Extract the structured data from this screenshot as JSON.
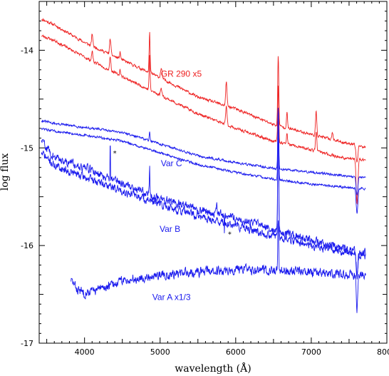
{
  "chart_data": {
    "type": "line",
    "xlabel": "wavelength (Å)",
    "ylabel": "log flux",
    "xlim": [
      3400,
      8000
    ],
    "ylim": [
      -17,
      -13.5
    ],
    "x_ticks": [
      4000,
      5000,
      6000,
      7000,
      8000
    ],
    "x_tick_labels": [
      "4000",
      "5000",
      "6000",
      "7000",
      "8000"
    ],
    "y_ticks": [
      -14,
      -15,
      -16,
      -17
    ],
    "y_tick_labels": [
      "-14",
      "-15",
      "-16",
      "-17"
    ],
    "grid": false,
    "colors": {
      "red": "#ee2222",
      "blue": "#1a1aee"
    },
    "annotations": [
      {
        "text": "GR 290 x5",
        "x": 5280,
        "y": -14.24,
        "color": "#ee2222"
      },
      {
        "text": "Var C",
        "x": 5150,
        "y": -15.16,
        "color": "#1a1aee"
      },
      {
        "text": "Var B",
        "x": 5130,
        "y": -15.83,
        "color": "#1a1aee"
      },
      {
        "text": "Var A  x1/3",
        "x": 5150,
        "y": -16.53,
        "color": "#1a1aee"
      },
      {
        "text": "*",
        "x": 4400,
        "y": -15.05,
        "color": "#000000"
      },
      {
        "text": "*",
        "x": 5920,
        "y": -15.88,
        "color": "#000000"
      }
    ],
    "series": [
      {
        "color": "#ee2222",
        "noise": 0.012,
        "seed": 11,
        "points": [
          [
            3430,
            -13.68
          ],
          [
            3600,
            -13.74
          ],
          [
            4000,
            -13.92
          ],
          [
            4500,
            -14.1
          ],
          [
            5000,
            -14.28
          ],
          [
            5500,
            -14.48
          ],
          [
            6000,
            -14.6
          ],
          [
            6500,
            -14.76
          ],
          [
            7000,
            -14.86
          ],
          [
            7400,
            -14.94
          ],
          [
            7620,
            -14.97
          ],
          [
            7720,
            -15.0
          ]
        ],
        "lines": [
          [
            4102,
            0.12,
            12
          ],
          [
            4340,
            0.16,
            12
          ],
          [
            4471,
            0.07,
            10
          ],
          [
            4861,
            0.42,
            9
          ],
          [
            5015,
            0.1,
            14
          ],
          [
            5876,
            0.25,
            12
          ],
          [
            6563,
            0.72,
            10
          ],
          [
            6678,
            0.16,
            10
          ],
          [
            7065,
            0.24,
            12
          ],
          [
            7280,
            0.08,
            12
          ]
        ],
        "abs": [
          [
            7605,
            0.18,
            18
          ]
        ]
      },
      {
        "color": "#ee2222",
        "noise": 0.012,
        "seed": 23,
        "points": [
          [
            3430,
            -13.85
          ],
          [
            3600,
            -13.9
          ],
          [
            4000,
            -14.07
          ],
          [
            4500,
            -14.27
          ],
          [
            5000,
            -14.46
          ],
          [
            5500,
            -14.65
          ],
          [
            6000,
            -14.8
          ],
          [
            6500,
            -14.93
          ],
          [
            7000,
            -15.02
          ],
          [
            7400,
            -15.1
          ],
          [
            7620,
            -15.12
          ],
          [
            7720,
            -15.12
          ]
        ],
        "lines": [
          [
            4102,
            0.1,
            12
          ],
          [
            4340,
            0.14,
            12
          ],
          [
            4471,
            0.06,
            10
          ],
          [
            4861,
            0.36,
            9
          ],
          [
            5015,
            0.08,
            14
          ],
          [
            5876,
            0.2,
            12
          ],
          [
            6563,
            0.58,
            10
          ],
          [
            6678,
            0.12,
            10
          ],
          [
            7065,
            0.2,
            12
          ]
        ],
        "abs": [
          [
            7605,
            0.45,
            16
          ]
        ]
      },
      {
        "color": "#1a1aee",
        "noise": 0.01,
        "seed": 31,
        "points": [
          [
            3430,
            -14.72
          ],
          [
            3600,
            -14.75
          ],
          [
            4000,
            -14.79
          ],
          [
            4500,
            -14.84
          ],
          [
            5000,
            -14.96
          ],
          [
            5500,
            -15.08
          ],
          [
            6000,
            -15.15
          ],
          [
            6500,
            -15.21
          ],
          [
            7000,
            -15.25
          ],
          [
            7400,
            -15.28
          ],
          [
            7620,
            -15.3
          ],
          [
            7720,
            -15.3
          ]
        ],
        "lines": [
          [
            4861,
            0.1,
            8
          ],
          [
            6563,
            0.62,
            9
          ]
        ],
        "abs": [
          [
            7605,
            0.18,
            16
          ]
        ]
      },
      {
        "color": "#1a1aee",
        "noise": 0.01,
        "seed": 47,
        "points": [
          [
            3430,
            -14.8
          ],
          [
            3600,
            -14.83
          ],
          [
            4000,
            -14.87
          ],
          [
            4500,
            -14.93
          ],
          [
            5000,
            -15.05
          ],
          [
            5500,
            -15.17
          ],
          [
            6000,
            -15.25
          ],
          [
            6500,
            -15.32
          ],
          [
            7000,
            -15.37
          ],
          [
            7400,
            -15.4
          ],
          [
            7620,
            -15.41
          ],
          [
            7720,
            -15.42
          ]
        ],
        "lines": [
          [
            6563,
            0.72,
            9
          ]
        ],
        "abs": [
          [
            7605,
            0.26,
            16
          ]
        ]
      },
      {
        "color": "#1a1aee",
        "noise": 0.035,
        "seed": 59,
        "points": [
          [
            3430,
            -14.92
          ],
          [
            3600,
            -15.1
          ],
          [
            4000,
            -15.2
          ],
          [
            4500,
            -15.36
          ],
          [
            5000,
            -15.52
          ],
          [
            5500,
            -15.62
          ],
          [
            6000,
            -15.72
          ],
          [
            6500,
            -15.83
          ],
          [
            7000,
            -15.95
          ],
          [
            7400,
            -16.02
          ],
          [
            7620,
            -16.05
          ],
          [
            7720,
            -16.08
          ]
        ],
        "lines": [
          [
            4340,
            0.55,
            3
          ],
          [
            4861,
            0.3,
            6
          ],
          [
            5750,
            0.12,
            6
          ],
          [
            6563,
            1.3,
            9
          ]
        ],
        "abs": [
          [
            5850,
            0.18,
            4
          ],
          [
            7605,
            0.25,
            14
          ]
        ]
      },
      {
        "color": "#1a1aee",
        "noise": 0.035,
        "seed": 71,
        "points": [
          [
            3430,
            -15.05
          ],
          [
            3600,
            -15.18
          ],
          [
            4000,
            -15.3
          ],
          [
            4500,
            -15.44
          ],
          [
            5000,
            -15.58
          ],
          [
            5500,
            -15.7
          ],
          [
            6000,
            -15.8
          ],
          [
            6500,
            -15.9
          ],
          [
            7000,
            -16.0
          ],
          [
            7400,
            -16.07
          ],
          [
            7620,
            -16.1
          ],
          [
            7720,
            -16.12
          ]
        ],
        "lines": [
          [
            6563,
            1.2,
            9
          ]
        ],
        "abs": [
          [
            7605,
            0.22,
            14
          ]
        ]
      },
      {
        "color": "#1a1aee",
        "noise": 0.04,
        "seed": 83,
        "points": [
          [
            3820,
            -16.35
          ],
          [
            3900,
            -16.45
          ],
          [
            4000,
            -16.48
          ],
          [
            4200,
            -16.45
          ],
          [
            4500,
            -16.36
          ],
          [
            5000,
            -16.3
          ],
          [
            5500,
            -16.27
          ],
          [
            6000,
            -16.25
          ],
          [
            6500,
            -16.25
          ],
          [
            7000,
            -16.28
          ],
          [
            7500,
            -16.3
          ],
          [
            7720,
            -16.3
          ]
        ],
        "lines": [
          [
            6563,
            0.5,
            8
          ]
        ],
        "abs": [
          [
            7605,
            0.35,
            14
          ]
        ]
      }
    ]
  }
}
